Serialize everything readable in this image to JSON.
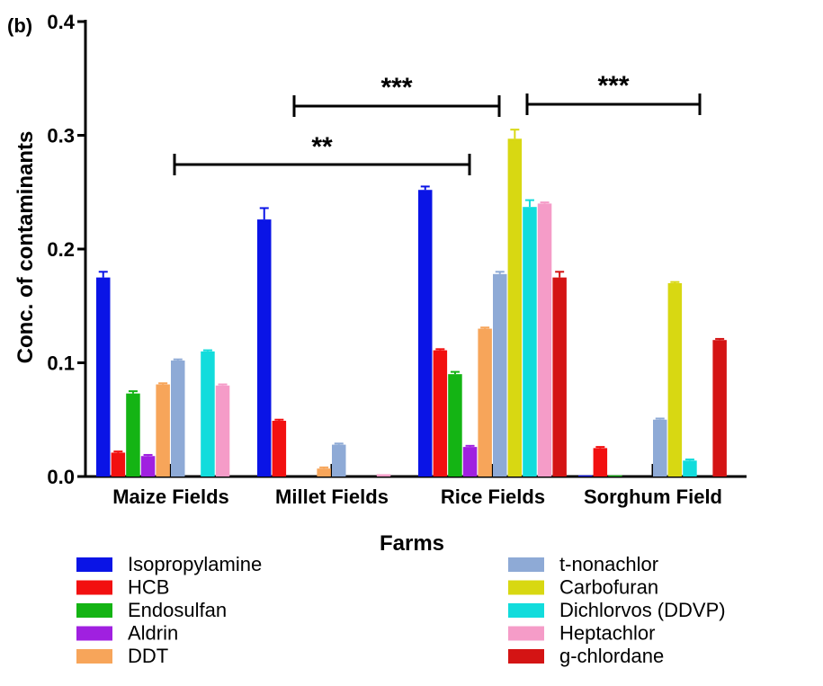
{
  "panel_label": "(b)",
  "colors": {
    "axis": "#000000",
    "background": "#ffffff"
  },
  "chart_data": {
    "type": "bar",
    "title": "",
    "xlabel": "Farms",
    "ylabel": "Conc. of contaminants",
    "ylim": [
      0,
      0.4
    ],
    "yticks": [
      "0.0",
      "0.1",
      "0.2",
      "0.3",
      "0.4"
    ],
    "ytick_values": [
      0,
      0.1,
      0.2,
      0.3,
      0.4
    ],
    "grid": false,
    "legend_position": "bottom",
    "categories": [
      "Maize Fields",
      "Millet Fields",
      "Rice Fields",
      "Sorghum Field"
    ],
    "series": [
      {
        "name": "Isopropylamine",
        "color": "#0a14e6",
        "values": [
          0.175,
          0.226,
          0.252,
          0.001
        ],
        "errors": [
          0.005,
          0.01,
          0.003,
          0
        ]
      },
      {
        "name": "HCB",
        "color": "#f21010",
        "values": [
          0.021,
          0.049,
          0.111,
          0.025
        ],
        "errors": [
          0.001,
          0.001,
          0.001,
          0.001
        ]
      },
      {
        "name": "Endosulfan",
        "color": "#14b414",
        "values": [
          0.073,
          0,
          0.09,
          0.001
        ],
        "errors": [
          0.002,
          0,
          0.002,
          0
        ]
      },
      {
        "name": "Aldrin",
        "color": "#a020e0",
        "values": [
          0.018,
          0,
          0.026,
          0
        ],
        "errors": [
          0.001,
          0,
          0.001,
          0
        ]
      },
      {
        "name": "DDT",
        "color": "#f7a55a",
        "values": [
          0.081,
          0.007,
          0.13,
          0
        ],
        "errors": [
          0.001,
          0.001,
          0.001,
          0
        ]
      },
      {
        "name": "t-nonachlor",
        "color": "#8eaad6",
        "values": [
          0.102,
          0.028,
          0.178,
          0.05
        ],
        "errors": [
          0.001,
          0.001,
          0.002,
          0.001
        ]
      },
      {
        "name": "Carbofuran",
        "color": "#d8d812",
        "values": [
          0,
          0,
          0.297,
          0.17
        ],
        "errors": [
          0,
          0,
          0.008,
          0.001
        ]
      },
      {
        "name": "Dichlorvos (DDVP)",
        "color": "#12dcdc",
        "values": [
          0.11,
          0,
          0.237,
          0.014
        ],
        "errors": [
          0.001,
          0,
          0.006,
          0.001
        ]
      },
      {
        "name": "Heptachlor",
        "color": "#f59cc8",
        "values": [
          0.08,
          0.002,
          0.24,
          0
        ],
        "errors": [
          0.001,
          0,
          0.001,
          0
        ]
      },
      {
        "name": "g-chlordane",
        "color": "#d41414",
        "values": [
          0,
          0,
          0.175,
          0.12
        ],
        "errors": [
          0,
          0,
          0.005,
          0.001
        ]
      }
    ],
    "significance": [
      {
        "label": "**",
        "from": "Maize Fields",
        "to": "Rice Fields"
      },
      {
        "label": "***",
        "from": "Millet Fields",
        "to": "Rice Fields"
      },
      {
        "label": "***",
        "from": "Rice Fields",
        "to": "Sorghum Field"
      }
    ]
  }
}
